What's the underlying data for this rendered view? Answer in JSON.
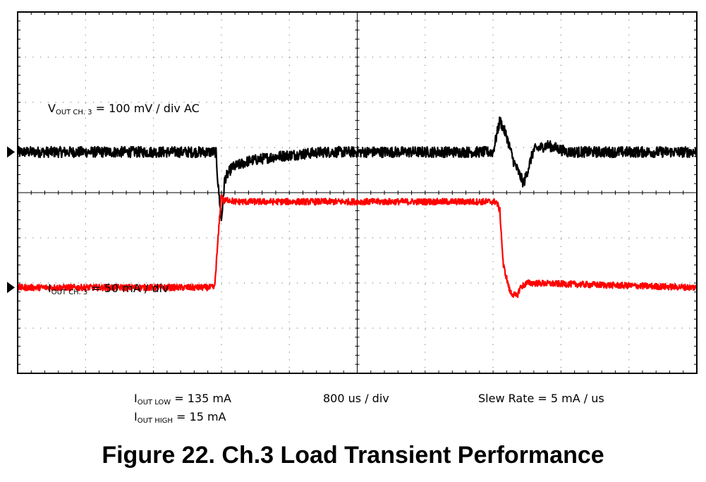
{
  "chart_data": {
    "type": "line",
    "title": "",
    "xlabel": "",
    "ylabel": "",
    "grid": true,
    "x_divisions": 10,
    "y_divisions": 8,
    "x_unit": "div",
    "series": [
      {
        "name": "VOUT CH. 3",
        "color": "#000000",
        "reference_level_div": 0.9,
        "noise_div": 0.12,
        "x": [
          0,
          2.92,
          2.95,
          3.0,
          3.05,
          3.15,
          3.4,
          3.8,
          4.5,
          5.5,
          7.0,
          7.1,
          7.2,
          7.3,
          7.45,
          7.6,
          7.8,
          8.1,
          10
        ],
        "y": [
          0.9,
          0.9,
          0.2,
          -0.6,
          0.3,
          0.55,
          0.7,
          0.8,
          0.9,
          0.9,
          0.9,
          1.6,
          1.25,
          0.7,
          0.2,
          0.95,
          1.05,
          0.9,
          0.9
        ]
      },
      {
        "name": "IOUT CH. 3",
        "color": "#ff0000",
        "reference_level_div": -2.1,
        "noise_div": 0.07,
        "x": [
          0,
          2.9,
          3.0,
          3.03,
          3.1,
          3.2,
          7.05,
          7.1,
          7.15,
          7.25,
          7.35,
          7.4,
          7.5,
          10
        ],
        "y": [
          -2.1,
          -2.1,
          0.0,
          -0.2,
          -0.15,
          -0.2,
          -0.2,
          -0.4,
          -1.6,
          -2.2,
          -2.3,
          -2.1,
          -2.0,
          -2.1
        ]
      }
    ]
  },
  "labels": {
    "vout_main": "V",
    "vout_sub": "OUT CH. 3",
    "vout_rest": " = 100 mV / div AC",
    "iout_main": "I",
    "iout_sub": "OUT CH. 3",
    "iout_rest": " = 50 mA / div",
    "iout_low_main": "I",
    "iout_low_sub": "OUT LOW",
    "iout_low_rest": " = 135 mA",
    "iout_high_main": "I",
    "iout_high_sub": "OUT HIGH",
    "iout_high_rest": " = 15 mA",
    "timebase": "800 us / div",
    "slew_rate": "Slew Rate = 5 mA / us"
  },
  "caption": "Figure 22. Ch.3 Load Transient Performance"
}
